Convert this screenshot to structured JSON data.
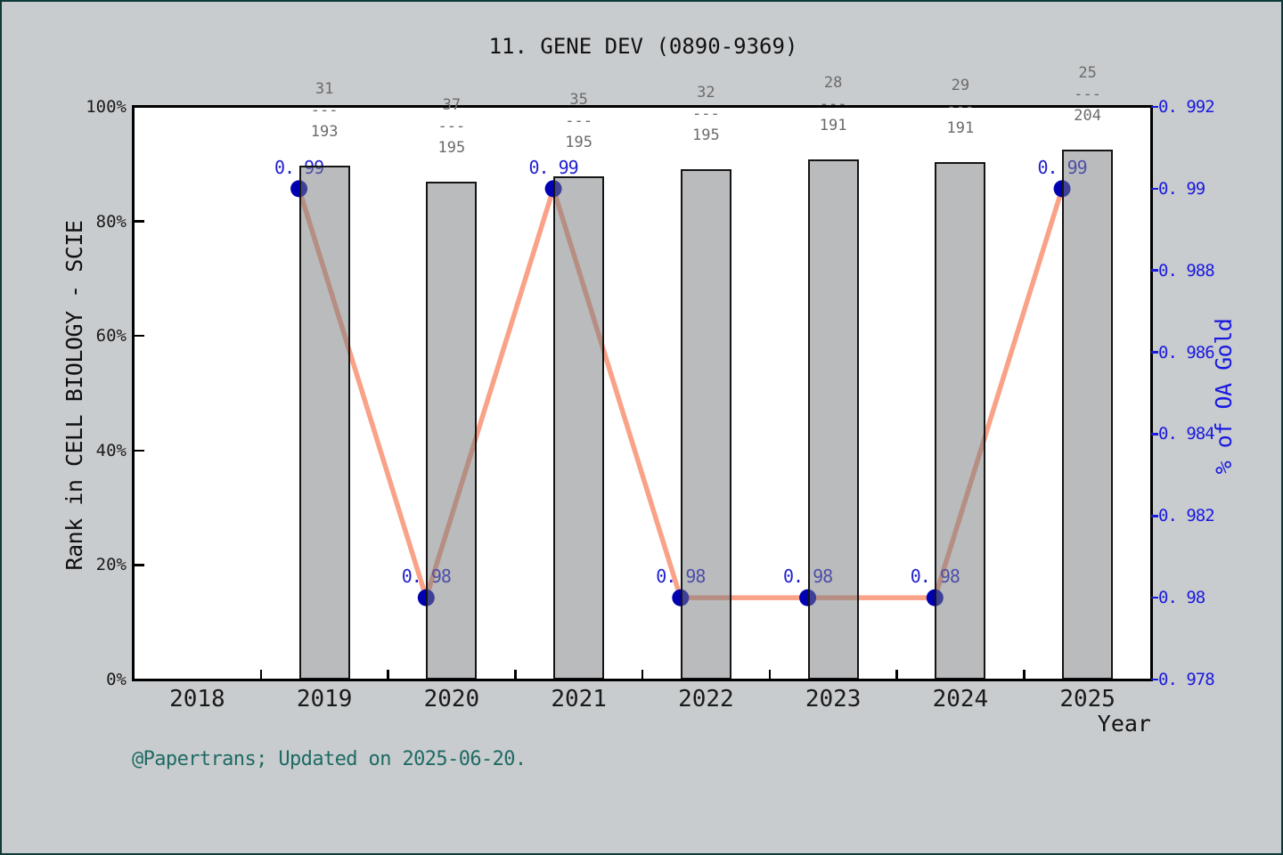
{
  "page": {
    "background": "#c9ccce",
    "border_color": "#0e3a37",
    "footer": "@Papertrans; Updated on 2025-06-20.",
    "footer_color": "#1e6a64"
  },
  "chart_data": {
    "type": "bar",
    "subtype": "dual-axis bar + line",
    "title": "11. GENE DEV (0890-9369)",
    "xlabel": "Year",
    "ylabel_left": "Rank in CELL BIOLOGY - SCIE",
    "ylabel_right": "% of OA Gold",
    "x_range": [
      2017.5,
      2025.5
    ],
    "x_ticks": [
      2018,
      2019,
      2020,
      2021,
      2022,
      2023,
      2024,
      2025
    ],
    "x_minor_ticks": [
      2018.5,
      2019.5,
      2020.5,
      2021.5,
      2022.5,
      2023.5,
      2024.5
    ],
    "left_axis": {
      "range": [
        0,
        100
      ],
      "ticks": [
        {
          "value": 0,
          "label": "0%"
        },
        {
          "value": 20,
          "label": "20%"
        },
        {
          "value": 40,
          "label": "40%"
        },
        {
          "value": 60,
          "label": "60%"
        },
        {
          "value": 80,
          "label": "80%"
        },
        {
          "value": 100,
          "label": "100%"
        }
      ],
      "color": "#1a1a1a"
    },
    "right_axis": {
      "range": [
        0.978,
        0.992
      ],
      "ticks": [
        {
          "value": 0.978,
          "label": "0. 978"
        },
        {
          "value": 0.98,
          "label": "0. 98"
        },
        {
          "value": 0.982,
          "label": "0. 982"
        },
        {
          "value": 0.984,
          "label": "0. 984"
        },
        {
          "value": 0.986,
          "label": "0. 986"
        },
        {
          "value": 0.988,
          "label": "0. 988"
        },
        {
          "value": 0.99,
          "label": "0. 99"
        },
        {
          "value": 0.992,
          "label": "0. 992"
        }
      ],
      "color": "#1a1adf"
    },
    "bars": {
      "series_name": "Rank percentile in CELL BIOLOGY - SCIE",
      "fill": "rgba(120,124,129,0.52)",
      "edge": "#141414",
      "width_years": 0.4,
      "fraction_separator": "---",
      "fraction_color": "#6b6b6b",
      "items": [
        {
          "year": 2019,
          "percent": 89.7,
          "rank": "31",
          "total": "193"
        },
        {
          "year": 2020,
          "percent": 86.9,
          "rank": "37",
          "total": "195"
        },
        {
          "year": 2021,
          "percent": 87.8,
          "rank": "35",
          "total": "195"
        },
        {
          "year": 2022,
          "percent": 89.1,
          "rank": "32",
          "total": "195"
        },
        {
          "year": 2023,
          "percent": 90.9,
          "rank": "28",
          "total": "191"
        },
        {
          "year": 2024,
          "percent": 90.4,
          "rank": "29",
          "total": "191"
        },
        {
          "year": 2025,
          "percent": 92.5,
          "rank": "25",
          "total": "204"
        }
      ]
    },
    "line": {
      "series_name": "% of OA Gold",
      "color": "#f9a287",
      "stroke_width": 5.5,
      "marker_color": "#0000b2",
      "marker_radius": 9.5,
      "label_color": "#1f1fd0",
      "x_offset_years": -0.2,
      "points": [
        {
          "year": 2019,
          "value": 0.99,
          "label": "0. 99"
        },
        {
          "year": 2020,
          "value": 0.98,
          "label": "0. 98"
        },
        {
          "year": 2021,
          "value": 0.99,
          "label": "0. 99"
        },
        {
          "year": 2022,
          "value": 0.98,
          "label": "0. 98"
        },
        {
          "year": 2023,
          "value": 0.98,
          "label": "0. 98"
        },
        {
          "year": 2024,
          "value": 0.98,
          "label": "0. 98"
        },
        {
          "year": 2025,
          "value": 0.99,
          "label": "0. 99"
        }
      ]
    }
  }
}
